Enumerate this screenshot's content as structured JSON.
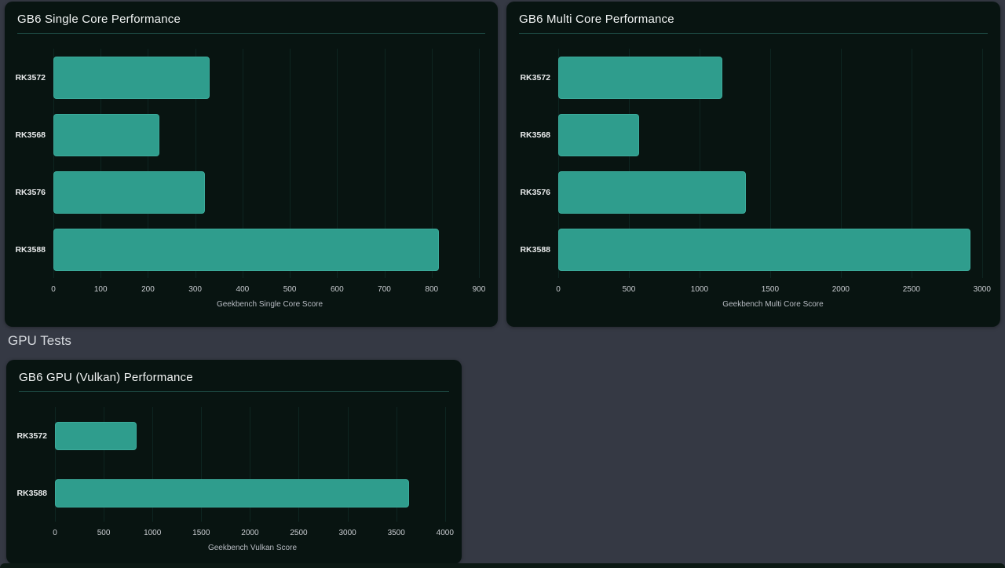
{
  "page": {
    "section_heading": "GPU Tests"
  },
  "colors": {
    "page_bg": "#353944",
    "card_bg": "#081411",
    "bar_fill": "#2f9d8d",
    "bar_border": "#3cab9b",
    "divider": "#1d4a43",
    "title_text": "#f2f4f4",
    "tick_text": "#c9ccd1"
  },
  "chart_data": [
    {
      "type": "bar",
      "orientation": "horizontal",
      "title": "GB6 Single Core Performance",
      "xlabel": "Geekbench Single Core Score",
      "categories": [
        "RK3572",
        "RK3568",
        "RK3576",
        "RK3588"
      ],
      "values": [
        330,
        225,
        320,
        815
      ],
      "xlim": [
        0,
        915
      ],
      "xticks": [
        0,
        100,
        200,
        300,
        400,
        500,
        600,
        700,
        800,
        900
      ],
      "grid": true,
      "legend": false
    },
    {
      "type": "bar",
      "orientation": "horizontal",
      "title": "GB6 Multi Core Performance",
      "xlabel": "Geekbench Multi Core Score",
      "categories": [
        "RK3572",
        "RK3568",
        "RK3576",
        "RK3588"
      ],
      "values": [
        1160,
        570,
        1330,
        2920
      ],
      "xlim": [
        0,
        3040
      ],
      "xticks": [
        0,
        500,
        1000,
        1500,
        2000,
        2500,
        3000
      ],
      "grid": true,
      "legend": false
    },
    {
      "type": "bar",
      "orientation": "horizontal",
      "title": "GB6 GPU (Vulkan) Performance",
      "xlabel": "Geekbench Vulkan Score",
      "categories": [
        "RK3572",
        "RK3588"
      ],
      "values": [
        840,
        3630
      ],
      "xlim": [
        0,
        4050
      ],
      "xticks": [
        0,
        500,
        1000,
        1500,
        2000,
        2500,
        3000,
        3500,
        4000
      ],
      "grid": true,
      "legend": false
    }
  ]
}
